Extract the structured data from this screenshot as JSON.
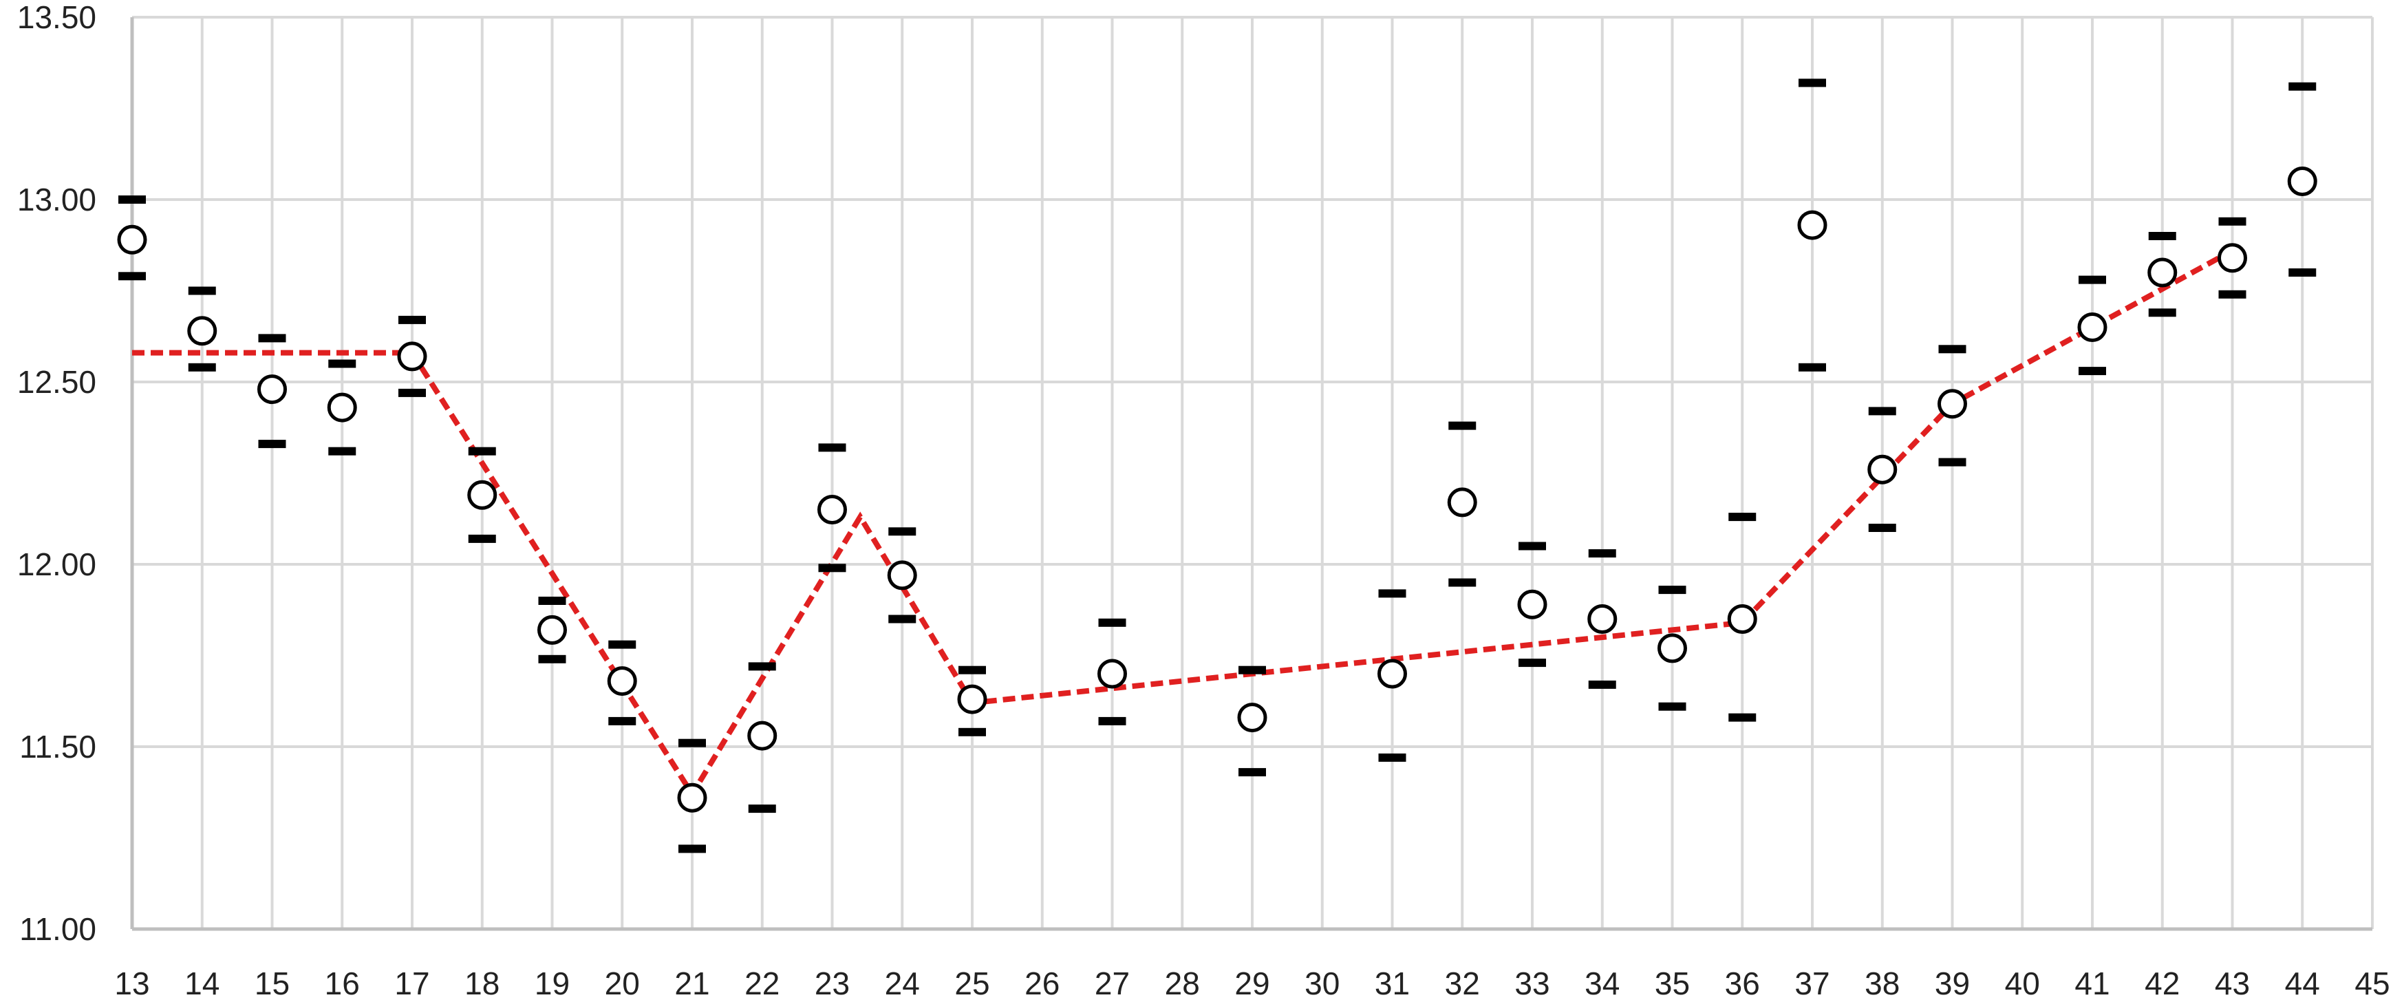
{
  "chart_data": {
    "type": "scatter",
    "title": "",
    "xlabel": "",
    "ylabel": "",
    "xlim": [
      13,
      45
    ],
    "ylim": [
      11.0,
      13.5
    ],
    "x_ticks": [
      "13",
      "14",
      "15",
      "16",
      "17",
      "18",
      "19",
      "20",
      "21",
      "22",
      "23",
      "24",
      "25",
      "26",
      "27",
      "28",
      "29",
      "30",
      "31",
      "32",
      "33",
      "34",
      "35",
      "36",
      "37",
      "38",
      "39",
      "40",
      "41",
      "42",
      "43",
      "44",
      "45"
    ],
    "y_ticks": [
      "11.00",
      "11.50",
      "12.00",
      "12.50",
      "13.00",
      "13.50"
    ],
    "grid": true,
    "colors": {
      "grid": "#d9d9d9",
      "trend": "#e02020",
      "marker": "#000000",
      "marker_fill": "#ffffff"
    },
    "points": [
      {
        "x": 13,
        "y": 12.89,
        "lower": 12.79,
        "upper": 13.0
      },
      {
        "x": 14,
        "y": 12.64,
        "lower": 12.54,
        "upper": 12.75
      },
      {
        "x": 15,
        "y": 12.48,
        "lower": 12.33,
        "upper": 12.62
      },
      {
        "x": 16,
        "y": 12.43,
        "lower": 12.31,
        "upper": 12.55
      },
      {
        "x": 17,
        "y": 12.57,
        "lower": 12.47,
        "upper": 12.67
      },
      {
        "x": 18,
        "y": 12.19,
        "lower": 12.07,
        "upper": 12.31
      },
      {
        "x": 19,
        "y": 11.82,
        "lower": 11.74,
        "upper": 11.9
      },
      {
        "x": 20,
        "y": 11.68,
        "lower": 11.57,
        "upper": 11.78
      },
      {
        "x": 21,
        "y": 11.36,
        "lower": 11.22,
        "upper": 11.51
      },
      {
        "x": 22,
        "y": 11.53,
        "lower": 11.33,
        "upper": 11.72
      },
      {
        "x": 23,
        "y": 12.15,
        "lower": 11.99,
        "upper": 12.32
      },
      {
        "x": 24,
        "y": 11.97,
        "lower": 11.85,
        "upper": 12.09
      },
      {
        "x": 25,
        "y": 11.63,
        "lower": 11.54,
        "upper": 11.71
      },
      {
        "x": 27,
        "y": 11.7,
        "lower": 11.57,
        "upper": 11.84
      },
      {
        "x": 29,
        "y": 11.58,
        "lower": 11.43,
        "upper": 11.71
      },
      {
        "x": 31,
        "y": 11.7,
        "lower": 11.47,
        "upper": 11.92
      },
      {
        "x": 32,
        "y": 12.17,
        "lower": 11.95,
        "upper": 12.38
      },
      {
        "x": 33,
        "y": 11.89,
        "lower": 11.73,
        "upper": 12.05
      },
      {
        "x": 34,
        "y": 11.85,
        "lower": 11.67,
        "upper": 12.03
      },
      {
        "x": 35,
        "y": 11.77,
        "lower": 11.61,
        "upper": 11.93
      },
      {
        "x": 36,
        "y": 11.85,
        "lower": 11.58,
        "upper": 12.13
      },
      {
        "x": 37,
        "y": 12.93,
        "lower": 12.54,
        "upper": 13.32
      },
      {
        "x": 38,
        "y": 12.26,
        "lower": 12.1,
        "upper": 12.42
      },
      {
        "x": 39,
        "y": 12.44,
        "lower": 12.28,
        "upper": 12.59
      },
      {
        "x": 41,
        "y": 12.65,
        "lower": 12.53,
        "upper": 12.78
      },
      {
        "x": 42,
        "y": 12.8,
        "lower": 12.69,
        "upper": 12.9
      },
      {
        "x": 43,
        "y": 12.84,
        "lower": 12.74,
        "upper": 12.94
      },
      {
        "x": 44,
        "y": 13.05,
        "lower": 12.8,
        "upper": 13.31
      }
    ],
    "trend_line": [
      {
        "x": 13,
        "y": 12.58
      },
      {
        "x": 17,
        "y": 12.58
      },
      {
        "x": 21,
        "y": 11.37
      },
      {
        "x": 23.4,
        "y": 12.13
      },
      {
        "x": 25,
        "y": 11.62
      },
      {
        "x": 36,
        "y": 11.84
      },
      {
        "x": 39,
        "y": 12.44
      },
      {
        "x": 43,
        "y": 12.86
      }
    ]
  }
}
